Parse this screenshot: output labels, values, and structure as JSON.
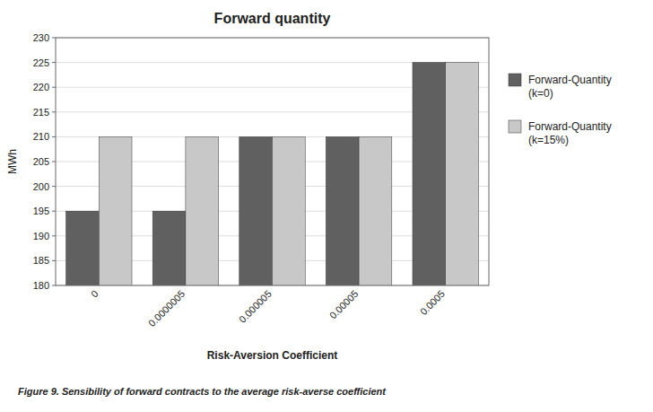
{
  "chart_data": {
    "type": "bar",
    "title": "Forward quantity",
    "xlabel": "Risk-Aversion Coefficient",
    "ylabel": "MWh",
    "caption": "Figure 9. Sensibility of forward contracts to the average risk-averse coefficient",
    "categories": [
      "0",
      "0.0000005",
      "0.000005",
      "0.00005",
      "0.0005"
    ],
    "series": [
      {
        "name": "Forward-Quantity\n(k=0)",
        "color": "#606060",
        "values": [
          195,
          195,
          210,
          210,
          225
        ]
      },
      {
        "name": "Forward-Quantity\n(k=15%)",
        "color": "#C8C8C8",
        "values": [
          210,
          210,
          210,
          210,
          225
        ]
      }
    ],
    "ylim": [
      180,
      230
    ],
    "yticks": [
      180,
      185,
      190,
      195,
      200,
      205,
      210,
      215,
      220,
      225,
      230
    ],
    "grid": true,
    "legend": "right"
  }
}
